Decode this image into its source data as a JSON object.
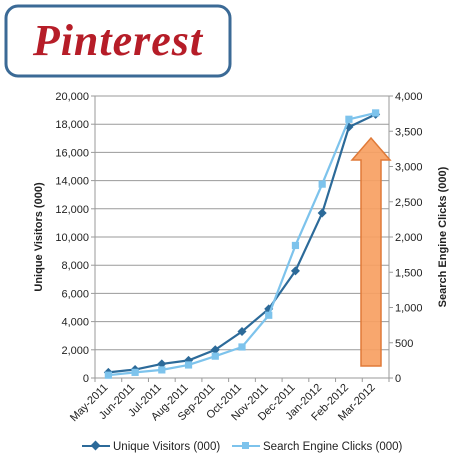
{
  "logo": {
    "text": "Pinterest",
    "color": "#b61d28",
    "border_color": "#3b6a96"
  },
  "chart_data": {
    "type": "line",
    "title": "",
    "categories": [
      "May-2011",
      "Jun-2011",
      "Jul-2011",
      "Aug-2011",
      "Sep-2011",
      "Oct-2011",
      "Nov-2011",
      "Dec-2011",
      "Jan-2012",
      "Feb-2012",
      "Mar-2012"
    ],
    "y_left": {
      "label": "Unique Visitors (000)",
      "range": [
        0,
        20000
      ],
      "ticks": [
        "0",
        "2,000",
        "4,000",
        "6,000",
        "8,000",
        "10,000",
        "12,000",
        "14,000",
        "16,000",
        "18,000",
        "20,000"
      ]
    },
    "y_right": {
      "label": "Search Engine Clicks (000)",
      "range": [
        0,
        4000
      ],
      "ticks": [
        "0",
        "500",
        "1,000",
        "1,500",
        "2,000",
        "2,500",
        "3,000",
        "3,500",
        "4,000"
      ]
    },
    "grid": true,
    "series": [
      {
        "name": "Unique Visitors (000)",
        "axis": "left",
        "marker": "diamond",
        "color": "#2c6a99",
        "values": [
          400,
          600,
          1000,
          1250,
          2000,
          3300,
          4900,
          7600,
          11700,
          17800,
          18700
        ]
      },
      {
        "name": "Search Engine Clicks (000)",
        "axis": "right",
        "marker": "square",
        "color": "#7dc3ec",
        "values": [
          40,
          80,
          115,
          185,
          310,
          440,
          890,
          1880,
          2750,
          3670,
          3760
        ]
      }
    ],
    "legend_position": "bottom",
    "annotation": {
      "type": "upward-arrow",
      "color": "#f7a062"
    }
  }
}
